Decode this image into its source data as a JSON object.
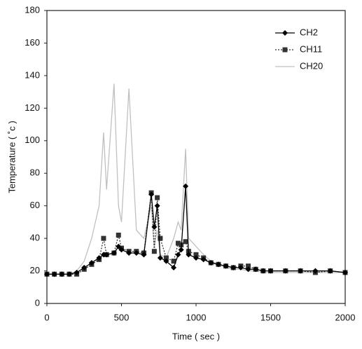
{
  "chart_data": {
    "type": "line",
    "x_label": "Time ( sec )",
    "y_label": "Temperature ( ˚c )",
    "x": [
      0,
      50,
      100,
      150,
      200,
      250,
      300,
      350,
      380,
      400,
      450,
      480,
      500,
      550,
      600,
      650,
      700,
      720,
      740,
      760,
      800,
      850,
      880,
      900,
      930,
      950,
      1000,
      1050,
      1100,
      1150,
      1200,
      1250,
      1300,
      1350,
      1400,
      1450,
      1500,
      1600,
      1700,
      1800,
      1900,
      2000
    ],
    "series": [
      {
        "name": "CH2",
        "color": "#000000",
        "marker": "diamond",
        "linestyle": "solid",
        "values": [
          18,
          18,
          18,
          18,
          19,
          22,
          25,
          28,
          30,
          30,
          31,
          35,
          33,
          31,
          31,
          30,
          67,
          47,
          60,
          28,
          26,
          22,
          30,
          33,
          72,
          30,
          28,
          27,
          25,
          24,
          23,
          22,
          22,
          21,
          21,
          20,
          20,
          20,
          20,
          20,
          20,
          19
        ]
      },
      {
        "name": "CH11",
        "color": "#333333",
        "marker": "square",
        "linestyle": "dotted",
        "values": [
          18,
          18,
          18,
          18,
          18,
          21,
          24,
          27,
          40,
          30,
          31,
          42,
          34,
          32,
          32,
          31,
          68,
          32,
          65,
          40,
          28,
          26,
          37,
          36,
          38,
          32,
          30,
          28,
          25,
          24,
          23,
          22,
          23,
          23,
          21,
          20,
          20,
          20,
          20,
          19,
          20,
          19
        ]
      },
      {
        "name": "CH20",
        "color": "#c0c0c0",
        "marker": "none",
        "linestyle": "solid",
        "values": [
          18,
          18,
          18,
          18,
          20,
          26,
          40,
          60,
          105,
          70,
          135,
          60,
          50,
          132,
          45,
          40,
          60,
          35,
          45,
          30,
          28,
          40,
          50,
          45,
          95,
          40,
          35,
          30,
          26,
          24,
          22,
          21,
          21,
          20,
          20,
          19,
          19,
          19,
          19,
          19,
          19,
          19
        ]
      }
    ],
    "xlim": [
      0,
      2000
    ],
    "xticks": [
      0,
      500,
      1000,
      1500,
      2000
    ],
    "ylim": [
      0,
      180
    ],
    "yticks": [
      0,
      20,
      40,
      60,
      80,
      100,
      120,
      140,
      160,
      180
    ],
    "legend": "upper-right"
  }
}
